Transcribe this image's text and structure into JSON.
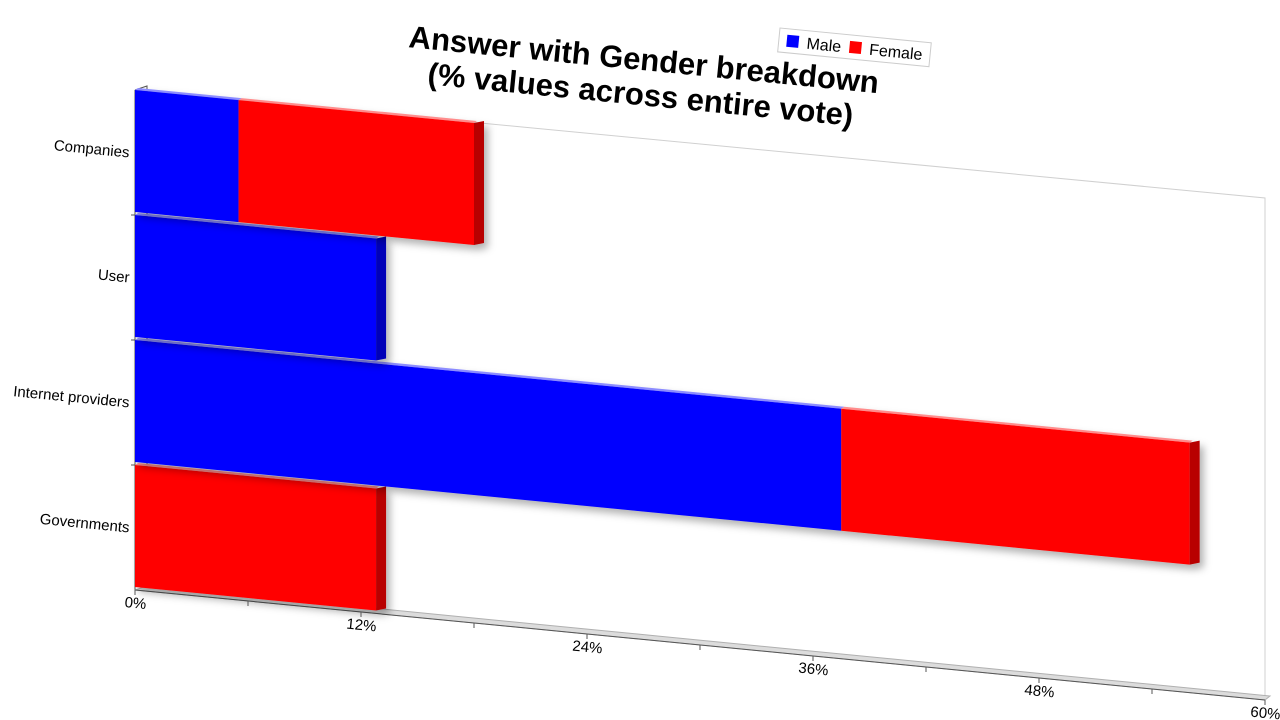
{
  "chart_data": {
    "type": "bar",
    "orientation": "horizontal",
    "stacked": true,
    "title": "Answer with Gender breakdown",
    "subtitle": "(% values across entire vote)",
    "categories": [
      "Companies",
      "User",
      "Internet providers",
      "Governments"
    ],
    "series": [
      {
        "name": "Male",
        "values": [
          5.5,
          12.8,
          37.5,
          0
        ]
      },
      {
        "name": "Female",
        "values": [
          12.5,
          0,
          18.5,
          12.8
        ]
      }
    ],
    "colors": {
      "Male": "#0000ff",
      "Female": "#ff0000"
    },
    "x_ticks": [
      "0%",
      "12%",
      "24%",
      "36%",
      "48%",
      "60%"
    ],
    "xlim": [
      0,
      60
    ],
    "legend_position": "top-right",
    "grid": false
  }
}
